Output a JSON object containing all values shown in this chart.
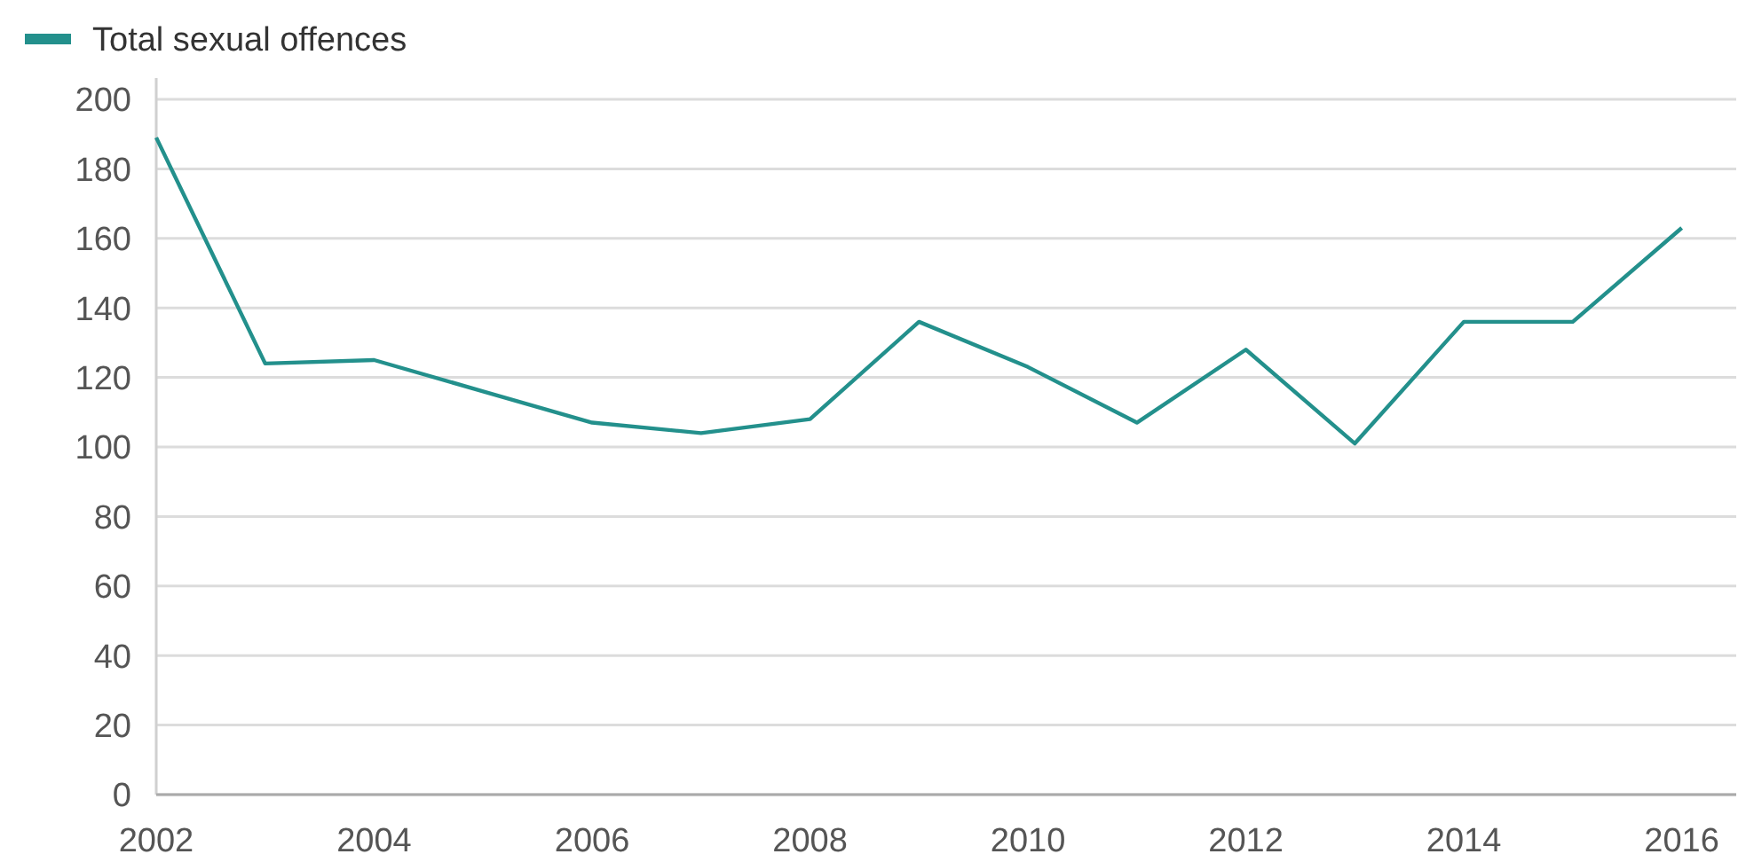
{
  "chart_data": {
    "type": "line",
    "x": [
      2002,
      2003,
      2004,
      2005,
      2006,
      2007,
      2008,
      2009,
      2010,
      2011,
      2012,
      2013,
      2014,
      2015,
      2016
    ],
    "series": [
      {
        "name": "Total sexual offences",
        "color": "#23908c",
        "values": [
          189,
          124,
          125,
          116,
          107,
          104,
          108,
          136,
          123,
          107,
          128,
          101,
          136,
          136,
          163
        ]
      }
    ],
    "xlim": [
      2002,
      2016.5
    ],
    "xticks": [
      2002,
      2004,
      2006,
      2008,
      2010,
      2012,
      2014,
      2016
    ],
    "ylim": [
      0,
      200
    ],
    "yticks": [
      0,
      20,
      40,
      60,
      80,
      100,
      120,
      140,
      160,
      180,
      200
    ],
    "grid": "y",
    "legend": "top left"
  }
}
